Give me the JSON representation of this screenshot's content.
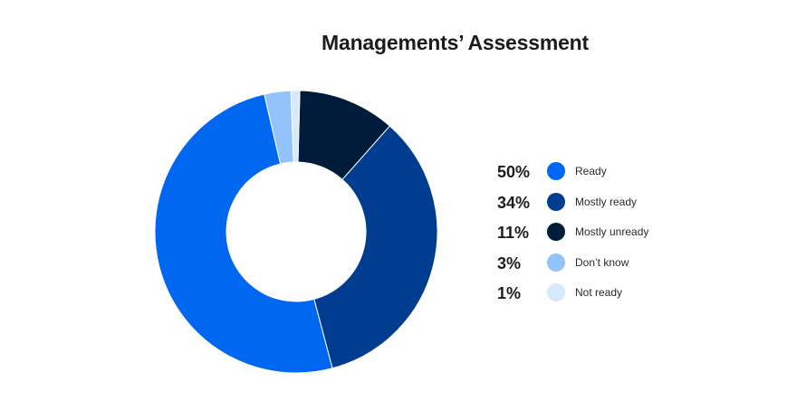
{
  "chart_data": {
    "type": "pie",
    "title": "Managements’ Assessment",
    "slices": [
      {
        "label": "Ready",
        "pct_label": "50%",
        "value": 50,
        "color": "#0068f0"
      },
      {
        "label": "Mostly ready",
        "pct_label": "34%",
        "value": 34,
        "color": "#003c8f"
      },
      {
        "label": "Mostly unready",
        "pct_label": "11%",
        "value": 11,
        "color": "#001c3a"
      },
      {
        "label": "Don’t know",
        "pct_label": "3%",
        "value": 3,
        "color": "#93c3fb"
      },
      {
        "label": "Not ready",
        "pct_label": "1%",
        "value": 1,
        "color": "#d6e9fd"
      }
    ],
    "legend_position": "right",
    "donut": true
  }
}
